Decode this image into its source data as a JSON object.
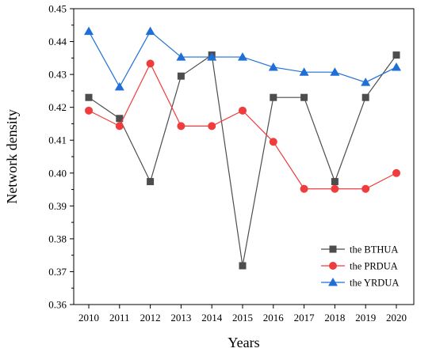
{
  "chart_data": {
    "type": "line",
    "xlabel": "Years",
    "ylabel": "Network density",
    "ylim": [
      0.36,
      0.45
    ],
    "y_ticks": [
      "0.36",
      "0.37",
      "0.38",
      "0.39",
      "0.40",
      "0.41",
      "0.42",
      "0.43",
      "0.44",
      "0.45"
    ],
    "categories": [
      "2010",
      "2011",
      "2012",
      "2013",
      "2014",
      "2015",
      "2016",
      "2017",
      "2018",
      "2019",
      "2020"
    ],
    "grid": false,
    "legend_position": "bottom-right",
    "series": [
      {
        "name": "the BTHUA",
        "color": "#4d4d4d",
        "marker": "square",
        "values": [
          0.423,
          0.4166,
          0.3974,
          0.4295,
          0.4359,
          0.3718,
          0.423,
          0.423,
          0.3974,
          0.423,
          0.4359
        ]
      },
      {
        "name": "the PRDUA",
        "color": "#f03c3c",
        "marker": "circle",
        "values": [
          0.419,
          0.4143,
          0.4333,
          0.4143,
          0.4143,
          0.419,
          0.4095,
          0.3952,
          0.3952,
          0.3952,
          0.4
        ]
      },
      {
        "name": "the YRDUA",
        "color": "#1f6fd6",
        "marker": "triangle",
        "values": [
          0.4431,
          0.4262,
          0.4431,
          0.4353,
          0.4353,
          0.4353,
          0.4322,
          0.4307,
          0.4307,
          0.4276,
          0.4322
        ]
      }
    ]
  }
}
